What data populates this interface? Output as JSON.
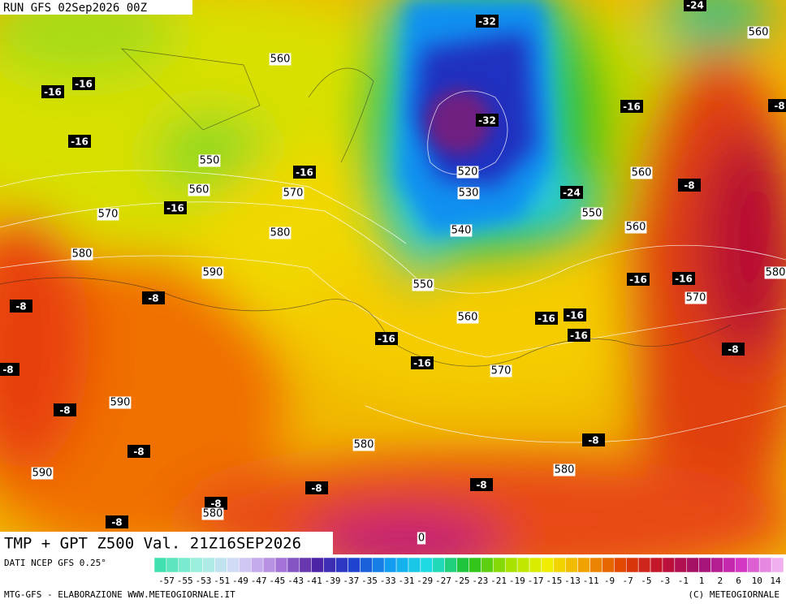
{
  "header": {
    "run": "RUN GFS 02Sep2026 00Z"
  },
  "map": {
    "temperature_labels": [
      -32,
      -32,
      -24,
      -24,
      -16,
      -16,
      -16,
      -16,
      -16,
      -16,
      -16,
      -16,
      -16,
      -16,
      -16,
      -16,
      -16,
      -8,
      -8,
      -8,
      -8,
      -8,
      -8,
      -8,
      -8,
      -8,
      -8,
      -8,
      -8,
      -8
    ],
    "height_labels": [
      560,
      550,
      560,
      570,
      570,
      580,
      580,
      590,
      520,
      530,
      540,
      550,
      560,
      570,
      560,
      560,
      550,
      560,
      580,
      570,
      590,
      590,
      580,
      580,
      580,
      0
    ]
  },
  "footer": {
    "title": "TMP + GPT Z500 Val. 21Z16SEP2026",
    "source": "DATI NCEP GFS 0.25°",
    "credit_left": "MTG-GFS - ELABORAZIONE WWW.METEOGIORNALE.IT",
    "credit_right": "(C) METEOGIORNALE"
  },
  "colorbar": {
    "labels": [
      -57,
      -55,
      -53,
      -51,
      -49,
      -47,
      -45,
      -43,
      -41,
      -39,
      -37,
      -35,
      -33,
      -31,
      -29,
      -27,
      -25,
      -23,
      -21,
      -19,
      -17,
      -15,
      -13,
      -11,
      -9,
      -7,
      -5,
      -3,
      -1,
      1,
      2,
      6,
      10,
      14
    ]
  }
}
